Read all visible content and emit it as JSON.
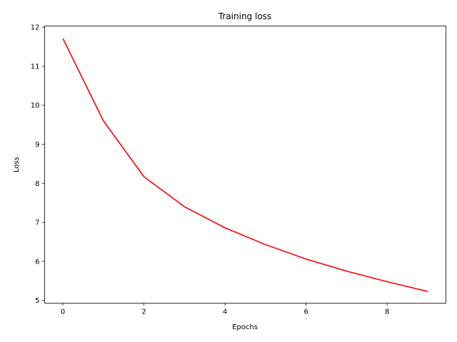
{
  "chart_data": {
    "type": "line",
    "title": "Training loss",
    "xlabel": "Epochs",
    "ylabel": "Loss",
    "xlim": [
      -0.45,
      9.45
    ],
    "ylim": [
      4.93,
      12.03
    ],
    "x_ticks": [
      0,
      2,
      4,
      6,
      8
    ],
    "y_ticks": [
      5,
      6,
      7,
      8,
      9,
      10,
      11,
      12
    ],
    "grid": false,
    "legend": "none",
    "series": [
      {
        "color": "#ff0000",
        "x": [
          0,
          1,
          2,
          3,
          4,
          5,
          6,
          7,
          8,
          9
        ],
        "values": [
          11.71,
          9.6,
          8.17,
          7.4,
          6.86,
          6.43,
          6.06,
          5.75,
          5.48,
          5.23
        ]
      }
    ]
  }
}
